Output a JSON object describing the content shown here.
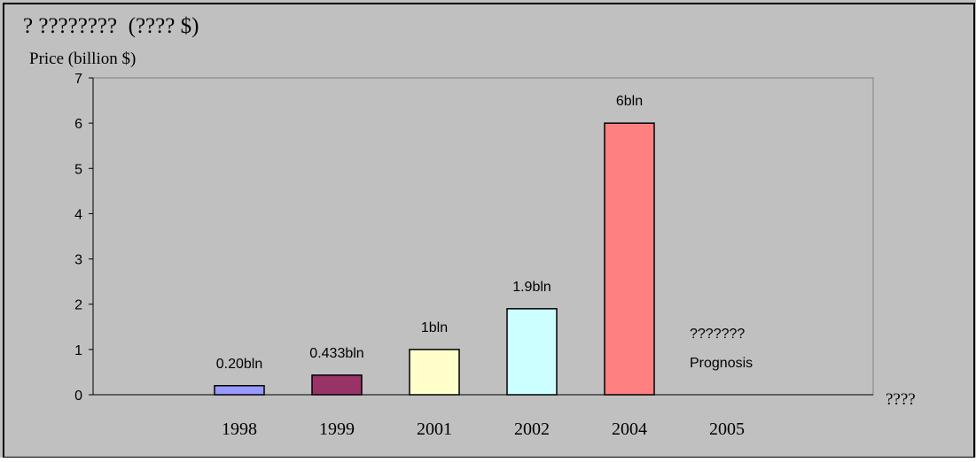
{
  "chart_data": {
    "type": "bar",
    "title": "? ????????  (???? $)",
    "ylabel": "Price (billion $)",
    "xlabel": "????",
    "ylim": [
      0,
      7
    ],
    "yticks": [
      "0",
      "1",
      "2",
      "3",
      "4",
      "5",
      "6",
      "7"
    ],
    "categories": [
      "1998",
      "1999",
      "2001",
      "2002",
      "2004",
      "2005"
    ],
    "values": [
      0.2,
      0.433,
      1,
      1.9,
      6,
      null
    ],
    "data_labels": [
      "0.20bln",
      "0.433bln",
      "1bln",
      "1.9bln",
      "6bln",
      ""
    ],
    "colors": [
      "#9999ff",
      "#993366",
      "#ffffcc",
      "#ccffff",
      "#ff8080",
      ""
    ],
    "annotation": {
      "line1": "???????",
      "line2": "Prognosis"
    },
    "grid": false,
    "legend": "none",
    "plot_background": "#c0c0c0"
  }
}
